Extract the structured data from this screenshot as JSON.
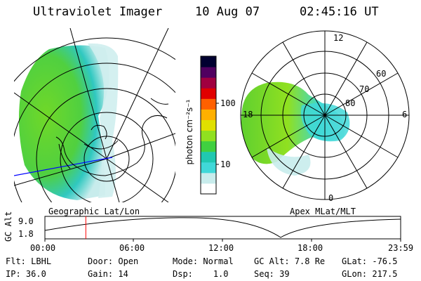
{
  "header": {
    "instrument": "Ultraviolet Imager",
    "date": "10 Aug 07",
    "time": "02:45:16 UT"
  },
  "panels": {
    "left_label": "Geographic Lat/Lon",
    "right_label": "Apex MLat/MLT"
  },
  "polar": {
    "mlt_labels": [
      "12",
      "18",
      "6",
      "0"
    ],
    "mlat_labels": [
      "60",
      "70",
      "80"
    ]
  },
  "colorbar": {
    "unit_label": "photon cm⁻²s⁻¹",
    "ticks": [
      "100",
      "10"
    ],
    "colors": [
      "#ffffff",
      "#c8ecec",
      "#40d8d8",
      "#20c8b0",
      "#40d040",
      "#90e020",
      "#e0e000",
      "#ffb000",
      "#ff6000",
      "#e00000",
      "#a00040",
      "#500060",
      "#000030"
    ]
  },
  "altitude_plot": {
    "ylabel": "GC Alt",
    "yticks": [
      "9.0",
      "1.8"
    ],
    "xticks": [
      "00:00",
      "06:00",
      "12:00",
      "18:00",
      "23:59"
    ],
    "current_time_fraction": 0.115
  },
  "info": {
    "row1": [
      {
        "label": "Flt:",
        "value": "LBHL"
      },
      {
        "label": "Door:",
        "value": "Open"
      },
      {
        "label": "Mode:",
        "value": "Normal"
      },
      {
        "label": "GC Alt:",
        "value": "7.8 Re"
      },
      {
        "label": "GLat:",
        "value": "-76.5"
      }
    ],
    "row2": [
      {
        "label": "IP:",
        "value": "36.0"
      },
      {
        "label": "Gain:",
        "value": "14"
      },
      {
        "label": "Dsp:",
        "value": "1.0"
      },
      {
        "label": "Seq:",
        "value": "39"
      },
      {
        "label": "GLon:",
        "value": "217.5"
      }
    ]
  }
}
